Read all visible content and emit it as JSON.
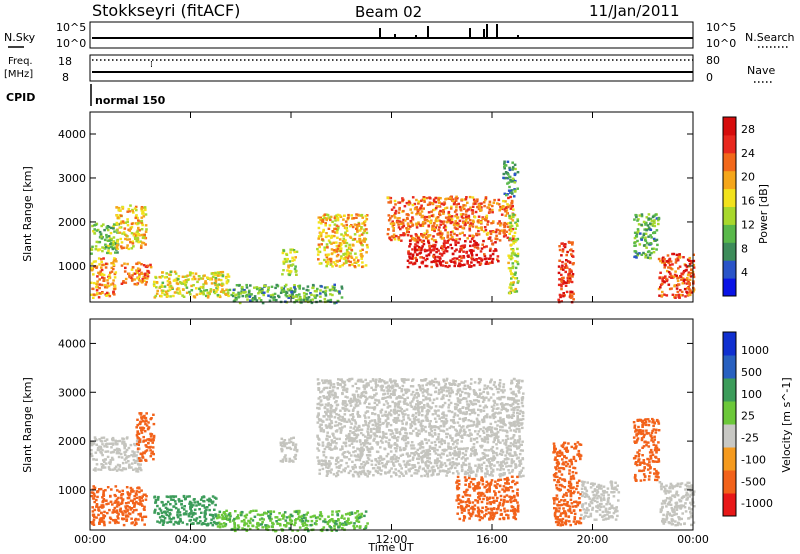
{
  "header": {
    "title": "Stokkseyri (fitACF)",
    "beam": "Beam 02",
    "date": "11/Jan/2011"
  },
  "top_panels": {
    "nsky_label": "N.Sky",
    "nsky_ticks": [
      "10^5",
      "10^0"
    ],
    "nsearch_label": "N.Search",
    "nsearch_ticks": [
      "10^5",
      "10^0"
    ],
    "freq_label_1": "Freq.",
    "freq_label_2": "[MHz]",
    "freq_ticks": [
      "18",
      "8"
    ],
    "nave_label": "Nave",
    "nave_ticks": [
      "80",
      "0"
    ],
    "cpid_label": "CPID",
    "cpid_value": "normal 150"
  },
  "colors": {
    "power": [
      "#0a14e6",
      "#2a54c8",
      "#3d8c5a",
      "#59b84a",
      "#a8d82c",
      "#f2e21c",
      "#f5a61a",
      "#f2681a",
      "#e8281e",
      "#d60c0c"
    ],
    "velocity": [
      "#e81818",
      "#f2621a",
      "#f59a1e",
      "#c8c8c4",
      "#6cc83a",
      "#3c9c5a",
      "#2860c0",
      "#1030d0"
    ],
    "grey_scatter": "#c4c4be"
  },
  "chart_data": [
    {
      "type": "heatmap",
      "name": "power",
      "xlabel": "",
      "ylabel": "Slant Range [km]",
      "xlim": [
        0,
        24
      ],
      "ylim": [
        180,
        4500
      ],
      "yticks": [
        "1000",
        "2000",
        "3000",
        "4000"
      ],
      "colorbar_label": "Power [dB]",
      "colorbar_ticks": [
        "4",
        "8",
        "12",
        "16",
        "20",
        "24",
        "28"
      ],
      "colorbar_range": [
        0,
        30
      ],
      "regions": [
        {
          "t0": 0.0,
          "t1": 1.0,
          "r0": 300,
          "r1": 1200,
          "v": 20
        },
        {
          "t0": 0.0,
          "t1": 1.1,
          "r0": 1300,
          "r1": 2000,
          "v": 12
        },
        {
          "t0": 1.0,
          "t1": 2.2,
          "r0": 1400,
          "r1": 2400,
          "v": 18
        },
        {
          "t0": 1.2,
          "t1": 2.4,
          "r0": 600,
          "r1": 1100,
          "v": 22
        },
        {
          "t0": 2.5,
          "t1": 5.5,
          "r0": 300,
          "r1": 900,
          "v": 16
        },
        {
          "t0": 5.5,
          "t1": 10.0,
          "r0": 180,
          "r1": 600,
          "v": 10
        },
        {
          "t0": 7.6,
          "t1": 8.2,
          "r0": 800,
          "r1": 1400,
          "v": 14
        },
        {
          "t0": 9.0,
          "t1": 11.0,
          "r0": 1000,
          "r1": 2200,
          "v": 18
        },
        {
          "t0": 11.8,
          "t1": 16.8,
          "r0": 1600,
          "r1": 2600,
          "v": 22
        },
        {
          "t0": 12.6,
          "t1": 16.2,
          "r0": 1000,
          "r1": 1600,
          "v": 28
        },
        {
          "t0": 16.4,
          "t1": 17.0,
          "r0": 2600,
          "r1": 3400,
          "v": 8
        },
        {
          "t0": 16.6,
          "t1": 17.0,
          "r0": 400,
          "r1": 2200,
          "v": 14
        },
        {
          "t0": 18.6,
          "t1": 19.2,
          "r0": 200,
          "r1": 1600,
          "v": 26
        },
        {
          "t0": 21.6,
          "t1": 22.6,
          "r0": 1200,
          "r1": 2200,
          "v": 10
        },
        {
          "t0": 22.6,
          "t1": 24.0,
          "r0": 300,
          "r1": 1300,
          "v": 24
        }
      ]
    },
    {
      "type": "heatmap",
      "name": "velocity",
      "xlabel": "Time UT",
      "ylabel": "Slant Range [km]",
      "xlim": [
        0,
        24
      ],
      "ylim": [
        180,
        4500
      ],
      "xticks": [
        "00:00",
        "04:00",
        "08:00",
        "12:00",
        "16:00",
        "20:00",
        "00:00"
      ],
      "yticks": [
        "1000",
        "2000",
        "3000",
        "4000"
      ],
      "colorbar_label": "Velocity [m s^-1]",
      "colorbar_ticks": [
        "1000",
        "500",
        "100",
        "25",
        "-25",
        "-100",
        "-500",
        "-1000"
      ],
      "regions": [
        {
          "t0": 0.0,
          "t1": 2.2,
          "r0": 300,
          "r1": 1100,
          "v": -300
        },
        {
          "t0": 0.0,
          "t1": 2.0,
          "r0": 1400,
          "r1": 2100,
          "v": 0
        },
        {
          "t0": 1.8,
          "t1": 2.5,
          "r0": 1600,
          "r1": 2600,
          "v": -200
        },
        {
          "t0": 2.5,
          "t1": 5.0,
          "r0": 300,
          "r1": 900,
          "v": 150
        },
        {
          "t0": 5.0,
          "t1": 11.0,
          "r0": 180,
          "r1": 600,
          "v": 80
        },
        {
          "t0": 7.5,
          "t1": 8.2,
          "r0": 1600,
          "r1": 2100,
          "v": 0
        },
        {
          "t0": 9.0,
          "t1": 17.2,
          "r0": 1300,
          "r1": 3300,
          "v": 0
        },
        {
          "t0": 14.5,
          "t1": 17.0,
          "r0": 400,
          "r1": 1300,
          "v": -300
        },
        {
          "t0": 18.4,
          "t1": 19.5,
          "r0": 300,
          "r1": 2000,
          "v": -400
        },
        {
          "t0": 19.5,
          "t1": 21.0,
          "r0": 400,
          "r1": 1200,
          "v": 0
        },
        {
          "t0": 21.6,
          "t1": 22.6,
          "r0": 1200,
          "r1": 2500,
          "v": -200
        },
        {
          "t0": 22.6,
          "t1": 24.0,
          "r0": 300,
          "r1": 1200,
          "v": 0
        }
      ]
    }
  ]
}
